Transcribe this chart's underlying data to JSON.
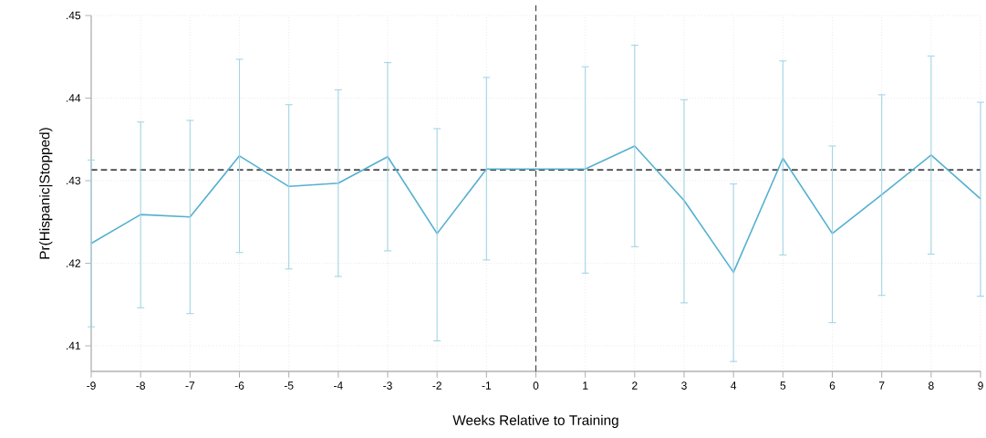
{
  "chart_data": {
    "type": "line",
    "xlabel": "Weeks Relative to Training",
    "ylabel": "Pr(Hispanic|Stopped)",
    "x": [
      -9,
      -8,
      -7,
      -6,
      -5,
      -4,
      -3,
      -2,
      -1,
      0,
      1,
      2,
      3,
      4,
      5,
      6,
      7,
      8,
      9
    ],
    "series": [
      {
        "color": "#55b0d0",
        "values": [
          0.4224,
          0.4259,
          0.4256,
          0.433,
          0.4293,
          0.4297,
          0.4329,
          0.4236,
          0.4314,
          0.4314,
          0.4314,
          0.4342,
          0.4276,
          0.4189,
          0.4327,
          0.4236,
          0.4283,
          0.4331,
          0.4278
        ],
        "errors": [
          [
            0.4123,
            0.4325
          ],
          [
            0.4146,
            0.4371
          ],
          [
            0.4139,
            0.4373
          ],
          [
            0.4213,
            0.4447
          ],
          [
            0.4193,
            0.4392
          ],
          [
            0.4184,
            0.441
          ],
          [
            0.4215,
            0.4443
          ],
          [
            0.4106,
            0.4363
          ],
          [
            0.4204,
            0.4425
          ],
          null,
          [
            0.4188,
            0.4438
          ],
          [
            0.422,
            0.4464
          ],
          [
            0.4152,
            0.4398
          ],
          [
            0.4081,
            0.4296
          ],
          [
            0.421,
            0.4445
          ],
          [
            0.4128,
            0.4342
          ],
          [
            0.4161,
            0.4404
          ],
          [
            0.4211,
            0.4451
          ],
          [
            0.416,
            0.4395
          ]
        ]
      }
    ],
    "xlim": [
      -9,
      9
    ],
    "ylim": [
      0.4069,
      0.45
    ],
    "xticks": [
      -9,
      -8,
      -7,
      -6,
      -5,
      -4,
      -3,
      -2,
      -1,
      0,
      1,
      2,
      3,
      4,
      5,
      6,
      7,
      8,
      9
    ],
    "yticks": [
      {
        "value": 0.41,
        "label": ".41"
      },
      {
        "value": 0.42,
        "label": ".42"
      },
      {
        "value": 0.43,
        "label": ".43"
      },
      {
        "value": 0.44,
        "label": ".44"
      },
      {
        "value": 0.45,
        "label": ".45"
      }
    ],
    "ref_lines": [
      {
        "axis": "y",
        "value": 0.4313,
        "color": "#000000",
        "line_style": "dashed"
      },
      {
        "axis": "x",
        "value": 0,
        "color": "#444444",
        "line_style": "dashed"
      }
    ],
    "grid": true,
    "marker": "none",
    "line_style": "solid"
  }
}
